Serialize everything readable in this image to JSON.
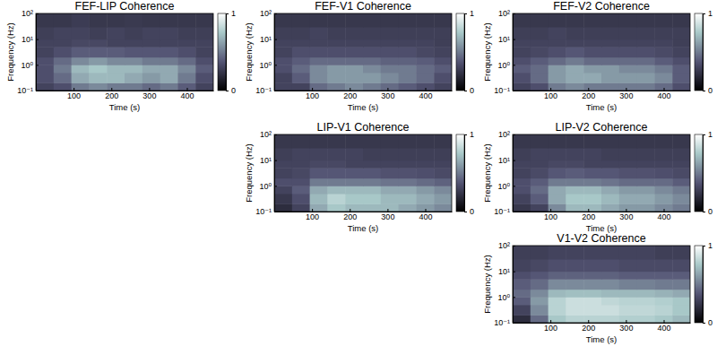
{
  "chart_data": [
    {
      "type": "heatmap",
      "title": "FEF-LIP Coherence",
      "x_label": "Time (s)",
      "y_label": "Frequency (Hz)",
      "log": "y",
      "xlim": [
        0,
        470
      ],
      "xticks": [
        100,
        200,
        300,
        400
      ],
      "ylim": [
        0.1,
        100
      ],
      "yticks": [
        {
          "value": 0.1,
          "label": "10⁻¹"
        },
        {
          "value": 1,
          "label": "10⁰"
        },
        {
          "value": 10,
          "label": "10¹"
        },
        {
          "value": 100,
          "label": "10²"
        }
      ],
      "x_bins": [
        0,
        47,
        94,
        141,
        188,
        235,
        282,
        329,
        376,
        423,
        470
      ],
      "y_bins": [
        0.1,
        0.2,
        0.5,
        1,
        2,
        5,
        10,
        30,
        100
      ],
      "values": [
        [
          0.3,
          0.35,
          0.5,
          0.55,
          0.5,
          0.5,
          0.45,
          0.5,
          0.4,
          0.3
        ],
        [
          0.35,
          0.45,
          0.65,
          0.7,
          0.7,
          0.65,
          0.6,
          0.65,
          0.5,
          0.35
        ],
        [
          0.35,
          0.5,
          0.7,
          0.75,
          0.7,
          0.7,
          0.65,
          0.65,
          0.55,
          0.4
        ],
        [
          0.35,
          0.45,
          0.55,
          0.6,
          0.55,
          0.55,
          0.5,
          0.5,
          0.45,
          0.35
        ],
        [
          0.3,
          0.35,
          0.4,
          0.4,
          0.4,
          0.38,
          0.38,
          0.38,
          0.35,
          0.3
        ],
        [
          0.3,
          0.3,
          0.32,
          0.32,
          0.3,
          0.3,
          0.3,
          0.3,
          0.3,
          0.3
        ],
        [
          0.28,
          0.3,
          0.3,
          0.28,
          0.3,
          0.28,
          0.3,
          0.3,
          0.28,
          0.28
        ],
        [
          0.25,
          0.25,
          0.27,
          0.25,
          0.25,
          0.26,
          0.25,
          0.25,
          0.25,
          0.25
        ]
      ],
      "colorbar": {
        "range": [
          0,
          1
        ],
        "ticks": [
          0,
          1
        ]
      }
    },
    {
      "type": "heatmap",
      "title": "FEF-V1 Coherence",
      "x_label": "Time (s)",
      "y_label": "Frequency (Hz)",
      "log": "y",
      "xlim": [
        0,
        470
      ],
      "xticks": [
        100,
        200,
        300,
        400
      ],
      "ylim": [
        0.1,
        100
      ],
      "yticks": [
        {
          "value": 0.1,
          "label": "10⁻¹"
        },
        {
          "value": 1,
          "label": "10⁰"
        },
        {
          "value": 10,
          "label": "10¹"
        },
        {
          "value": 100,
          "label": "10²"
        }
      ],
      "x_bins": [
        0,
        47,
        94,
        141,
        188,
        235,
        282,
        329,
        376,
        423,
        470
      ],
      "y_bins": [
        0.1,
        0.2,
        0.5,
        1,
        2,
        5,
        10,
        30,
        100
      ],
      "values": [
        [
          0.3,
          0.3,
          0.45,
          0.5,
          0.55,
          0.5,
          0.45,
          0.4,
          0.35,
          0.3
        ],
        [
          0.3,
          0.4,
          0.55,
          0.6,
          0.6,
          0.6,
          0.55,
          0.5,
          0.45,
          0.35
        ],
        [
          0.35,
          0.45,
          0.55,
          0.6,
          0.6,
          0.55,
          0.5,
          0.5,
          0.45,
          0.4
        ],
        [
          0.35,
          0.4,
          0.45,
          0.45,
          0.45,
          0.45,
          0.42,
          0.42,
          0.4,
          0.35
        ],
        [
          0.3,
          0.35,
          0.35,
          0.35,
          0.35,
          0.35,
          0.35,
          0.35,
          0.32,
          0.3
        ],
        [
          0.3,
          0.3,
          0.3,
          0.3,
          0.3,
          0.3,
          0.3,
          0.3,
          0.3,
          0.28
        ],
        [
          0.28,
          0.28,
          0.3,
          0.28,
          0.28,
          0.28,
          0.28,
          0.28,
          0.28,
          0.28
        ],
        [
          0.25,
          0.25,
          0.25,
          0.25,
          0.25,
          0.25,
          0.25,
          0.25,
          0.25,
          0.25
        ]
      ],
      "colorbar": {
        "range": [
          0,
          1
        ],
        "ticks": [
          0,
          1
        ]
      }
    },
    {
      "type": "heatmap",
      "title": "FEF-V2 Coherence",
      "x_label": "Time (s)",
      "y_label": "Frequency (Hz)",
      "log": "y",
      "xlim": [
        0,
        470
      ],
      "xticks": [
        100,
        200,
        300,
        400
      ],
      "ylim": [
        0.1,
        100
      ],
      "yticks": [
        {
          "value": 0.1,
          "label": "10⁻¹"
        },
        {
          "value": 1,
          "label": "10⁰"
        },
        {
          "value": 10,
          "label": "10¹"
        },
        {
          "value": 100,
          "label": "10²"
        }
      ],
      "x_bins": [
        0,
        47,
        94,
        141,
        188,
        235,
        282,
        329,
        376,
        423,
        470
      ],
      "y_bins": [
        0.1,
        0.2,
        0.5,
        1,
        2,
        5,
        10,
        30,
        100
      ],
      "values": [
        [
          0.3,
          0.35,
          0.5,
          0.55,
          0.5,
          0.5,
          0.5,
          0.5,
          0.45,
          0.35
        ],
        [
          0.35,
          0.45,
          0.6,
          0.65,
          0.65,
          0.6,
          0.6,
          0.6,
          0.55,
          0.4
        ],
        [
          0.4,
          0.45,
          0.6,
          0.65,
          0.6,
          0.6,
          0.55,
          0.55,
          0.5,
          0.4
        ],
        [
          0.35,
          0.4,
          0.45,
          0.5,
          0.45,
          0.45,
          0.45,
          0.45,
          0.4,
          0.35
        ],
        [
          0.3,
          0.32,
          0.35,
          0.38,
          0.35,
          0.35,
          0.35,
          0.35,
          0.33,
          0.3
        ],
        [
          0.3,
          0.3,
          0.3,
          0.3,
          0.3,
          0.3,
          0.3,
          0.3,
          0.3,
          0.28
        ],
        [
          0.28,
          0.28,
          0.3,
          0.28,
          0.28,
          0.28,
          0.28,
          0.28,
          0.28,
          0.28
        ],
        [
          0.25,
          0.25,
          0.25,
          0.25,
          0.25,
          0.25,
          0.25,
          0.25,
          0.25,
          0.25
        ]
      ],
      "colorbar": {
        "range": [
          0,
          1
        ],
        "ticks": [
          0,
          1
        ]
      }
    },
    {
      "type": "heatmap",
      "title": "LIP-V1 Coherence",
      "x_label": "Time (s)",
      "y_label": "Frequency (Hz)",
      "log": "y",
      "xlim": [
        0,
        470
      ],
      "xticks": [
        100,
        200,
        300,
        400
      ],
      "ylim": [
        0.1,
        100
      ],
      "yticks": [
        {
          "value": 0.1,
          "label": "10⁻¹"
        },
        {
          "value": 1,
          "label": "10⁰"
        },
        {
          "value": 10,
          "label": "10¹"
        },
        {
          "value": 100,
          "label": "10²"
        }
      ],
      "x_bins": [
        0,
        47,
        94,
        141,
        188,
        235,
        282,
        329,
        376,
        423,
        470
      ],
      "y_bins": [
        0.1,
        0.2,
        0.5,
        1,
        2,
        5,
        10,
        30,
        100
      ],
      "values": [
        [
          0.2,
          0.3,
          0.65,
          0.75,
          0.7,
          0.7,
          0.7,
          0.65,
          0.6,
          0.55
        ],
        [
          0.25,
          0.35,
          0.7,
          0.8,
          0.75,
          0.75,
          0.7,
          0.7,
          0.65,
          0.6
        ],
        [
          0.3,
          0.4,
          0.65,
          0.7,
          0.7,
          0.7,
          0.65,
          0.65,
          0.6,
          0.55
        ],
        [
          0.35,
          0.35,
          0.5,
          0.5,
          0.5,
          0.5,
          0.48,
          0.48,
          0.45,
          0.42
        ],
        [
          0.3,
          0.32,
          0.38,
          0.38,
          0.38,
          0.38,
          0.36,
          0.36,
          0.35,
          0.33
        ],
        [
          0.3,
          0.3,
          0.32,
          0.32,
          0.3,
          0.3,
          0.3,
          0.3,
          0.3,
          0.3
        ],
        [
          0.28,
          0.3,
          0.3,
          0.3,
          0.3,
          0.28,
          0.28,
          0.28,
          0.28,
          0.28
        ],
        [
          0.25,
          0.25,
          0.25,
          0.25,
          0.25,
          0.25,
          0.25,
          0.25,
          0.25,
          0.25
        ]
      ],
      "colorbar": {
        "range": [
          0,
          1
        ],
        "ticks": [
          0,
          1
        ]
      }
    },
    {
      "type": "heatmap",
      "title": "LIP-V2 Coherence",
      "x_label": "Time (s)",
      "y_label": "Frequency (Hz)",
      "log": "y",
      "xlim": [
        0,
        470
      ],
      "xticks": [
        100,
        200,
        300,
        400
      ],
      "ylim": [
        0.1,
        100
      ],
      "yticks": [
        {
          "value": 0.1,
          "label": "10⁻¹"
        },
        {
          "value": 1,
          "label": "10⁰"
        },
        {
          "value": 10,
          "label": "10¹"
        },
        {
          "value": 100,
          "label": "10²"
        }
      ],
      "x_bins": [
        0,
        47,
        94,
        141,
        188,
        235,
        282,
        329,
        376,
        423,
        470
      ],
      "y_bins": [
        0.1,
        0.2,
        0.5,
        1,
        2,
        5,
        10,
        30,
        100
      ],
      "values": [
        [
          0.25,
          0.3,
          0.55,
          0.7,
          0.7,
          0.65,
          0.6,
          0.6,
          0.55,
          0.5
        ],
        [
          0.3,
          0.4,
          0.65,
          0.75,
          0.75,
          0.7,
          0.65,
          0.65,
          0.6,
          0.55
        ],
        [
          0.35,
          0.45,
          0.65,
          0.7,
          0.7,
          0.65,
          0.6,
          0.6,
          0.55,
          0.5
        ],
        [
          0.35,
          0.4,
          0.5,
          0.5,
          0.5,
          0.48,
          0.45,
          0.45,
          0.45,
          0.4
        ],
        [
          0.3,
          0.33,
          0.38,
          0.4,
          0.38,
          0.38,
          0.36,
          0.36,
          0.35,
          0.33
        ],
        [
          0.3,
          0.3,
          0.32,
          0.32,
          0.3,
          0.3,
          0.3,
          0.3,
          0.3,
          0.3
        ],
        [
          0.28,
          0.3,
          0.3,
          0.3,
          0.3,
          0.28,
          0.28,
          0.28,
          0.28,
          0.28
        ],
        [
          0.25,
          0.25,
          0.25,
          0.25,
          0.25,
          0.25,
          0.25,
          0.25,
          0.25,
          0.25
        ]
      ],
      "colorbar": {
        "range": [
          0,
          1
        ],
        "ticks": [
          0,
          1
        ]
      }
    },
    {
      "type": "heatmap",
      "title": "V1-V2 Coherence",
      "x_label": "Time (s)",
      "y_label": "Frequency (Hz)",
      "log": "y",
      "xlim": [
        0,
        470
      ],
      "xticks": [
        100,
        200,
        300,
        400
      ],
      "ylim": [
        0.1,
        100
      ],
      "yticks": [
        {
          "value": 0.1,
          "label": "10⁻¹"
        },
        {
          "value": 1,
          "label": "10⁰"
        },
        {
          "value": 10,
          "label": "10¹"
        },
        {
          "value": 100,
          "label": "10²"
        }
      ],
      "x_bins": [
        0,
        47,
        94,
        141,
        188,
        235,
        282,
        329,
        376,
        423,
        470
      ],
      "y_bins": [
        0.1,
        0.2,
        0.5,
        1,
        2,
        5,
        10,
        30,
        100
      ],
      "values": [
        [
          0.2,
          0.45,
          0.75,
          0.8,
          0.8,
          0.8,
          0.78,
          0.78,
          0.75,
          0.7
        ],
        [
          0.3,
          0.55,
          0.8,
          0.85,
          0.85,
          0.85,
          0.82,
          0.82,
          0.8,
          0.75
        ],
        [
          0.4,
          0.6,
          0.8,
          0.85,
          0.85,
          0.82,
          0.8,
          0.8,
          0.78,
          0.75
        ],
        [
          0.45,
          0.55,
          0.7,
          0.72,
          0.72,
          0.7,
          0.7,
          0.7,
          0.68,
          0.65
        ],
        [
          0.4,
          0.45,
          0.55,
          0.55,
          0.55,
          0.55,
          0.52,
          0.52,
          0.5,
          0.5
        ],
        [
          0.35,
          0.38,
          0.42,
          0.42,
          0.42,
          0.42,
          0.4,
          0.4,
          0.4,
          0.4
        ],
        [
          0.3,
          0.32,
          0.35,
          0.35,
          0.35,
          0.35,
          0.33,
          0.33,
          0.33,
          0.33
        ],
        [
          0.28,
          0.28,
          0.3,
          0.3,
          0.3,
          0.3,
          0.3,
          0.3,
          0.28,
          0.28
        ]
      ],
      "colorbar": {
        "range": [
          0,
          1
        ],
        "ticks": [
          0,
          1
        ]
      }
    }
  ]
}
